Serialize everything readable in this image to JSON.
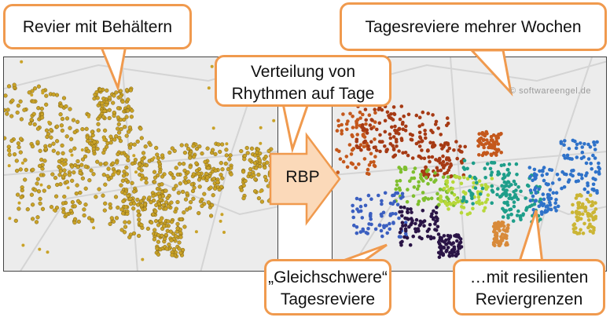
{
  "callouts": {
    "revier": [
      "Revier mit Behältern"
    ],
    "tagesreviere_wochen": [
      "Tagesreviere mehrer Wochen"
    ],
    "verteilung": [
      "Verteilung von",
      "Rhythmen auf Tage"
    ],
    "rbp": [
      "RBP"
    ],
    "gleichschwere": [
      "„Gleichschwere“",
      "Tagesreviere"
    ],
    "resilient": [
      "…mit resilienten",
      "Reviergrenzen"
    ]
  },
  "watermark": "© softwareengel.de",
  "colors": {
    "callout_border": "#f09a4e",
    "arrow_fill": "#fbd9b9",
    "container_points": "#c9a227",
    "regions": [
      "#c4581c",
      "#a63a14",
      "#7fbf2e",
      "#b7d83a",
      "#3b5fc0",
      "#2a1446",
      "#1e9e8a",
      "#2f72c9",
      "#cbb534",
      "#d88a3a"
    ]
  }
}
